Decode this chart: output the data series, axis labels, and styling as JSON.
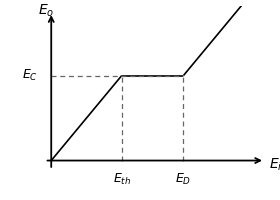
{
  "title": "",
  "xlabel": "E_i",
  "ylabel": "E_o",
  "ec_label": "E_C",
  "eth_label": "E_{th}",
  "ed_label": "E_D",
  "eth": 0.32,
  "ed": 0.6,
  "ec": 0.55,
  "line_color": "#000000",
  "dash_color": "#666666",
  "background_color": "#ffffff",
  "axis_color": "#000000",
  "fontsize_label": 10,
  "fontsize_tick": 9,
  "lw_main": 1.2,
  "lw_dash": 0.9,
  "lw_axis": 1.3
}
